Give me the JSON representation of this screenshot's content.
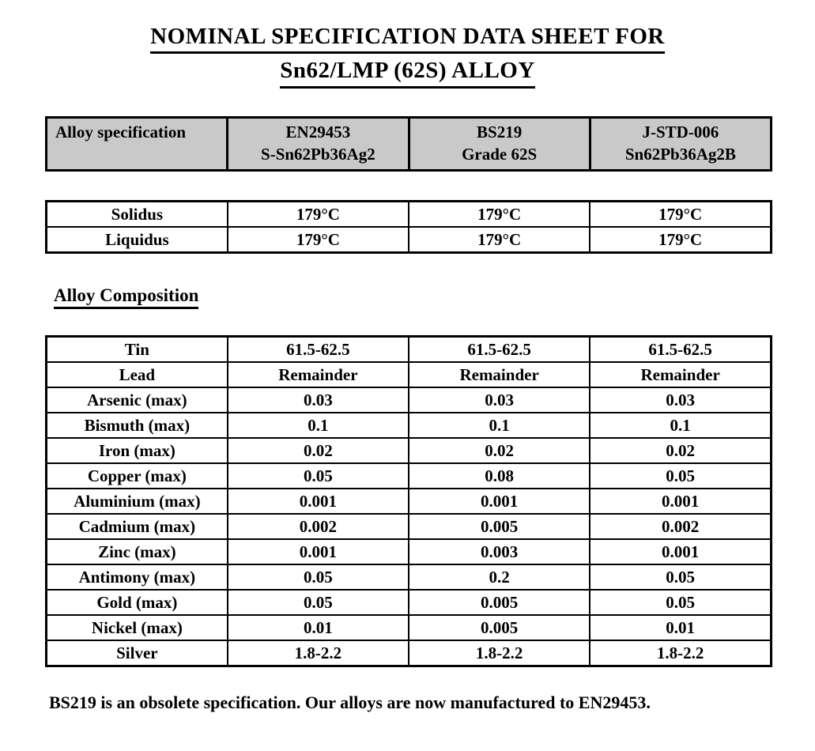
{
  "title": {
    "line1": "NOMINAL SPECIFICATION DATA SHEET FOR",
    "line2": "Sn62/LMP (62S) ALLOY"
  },
  "spec_header": {
    "row_label": "Alloy specification",
    "columns": [
      {
        "line1": "EN29453",
        "line2": "S-Sn62Pb36Ag2"
      },
      {
        "line1": "BS219",
        "line2": "Grade 62S"
      },
      {
        "line1": "J-STD-006",
        "line2": "Sn62Pb36Ag2B"
      }
    ]
  },
  "melting_table": {
    "rows": [
      {
        "label": "Solidus",
        "values": [
          "179°C",
          "179°C",
          "179°C"
        ]
      },
      {
        "label": "Liquidus",
        "values": [
          "179°C",
          "179°C",
          "179°C"
        ]
      }
    ]
  },
  "composition": {
    "heading": "Alloy Composition",
    "rows": [
      {
        "label": "Tin",
        "values": [
          "61.5-62.5",
          "61.5-62.5",
          "61.5-62.5"
        ]
      },
      {
        "label": "Lead",
        "values": [
          "Remainder",
          "Remainder",
          "Remainder"
        ]
      },
      {
        "label": "Arsenic (max)",
        "values": [
          "0.03",
          "0.03",
          "0.03"
        ]
      },
      {
        "label": "Bismuth (max)",
        "values": [
          "0.1",
          "0.1",
          "0.1"
        ]
      },
      {
        "label": "Iron (max)",
        "values": [
          "0.02",
          "0.02",
          "0.02"
        ]
      },
      {
        "label": "Copper (max)",
        "values": [
          "0.05",
          "0.08",
          "0.05"
        ]
      },
      {
        "label": "Aluminium (max)",
        "values": [
          "0.001",
          "0.001",
          "0.001"
        ]
      },
      {
        "label": "Cadmium (max)",
        "values": [
          "0.002",
          "0.005",
          "0.002"
        ]
      },
      {
        "label": "Zinc (max)",
        "values": [
          "0.001",
          "0.003",
          "0.001"
        ]
      },
      {
        "label": "Antimony (max)",
        "values": [
          "0.05",
          "0.2",
          "0.05"
        ]
      },
      {
        "label": "Gold (max)",
        "values": [
          "0.05",
          "0.005",
          "0.05"
        ]
      },
      {
        "label": "Nickel (max)",
        "values": [
          "0.01",
          "0.005",
          "0.01"
        ]
      },
      {
        "label": "Silver",
        "values": [
          "1.8-2.2",
          "1.8-2.2",
          "1.8-2.2"
        ]
      }
    ]
  },
  "footer": {
    "note": "BS219 is an obsolete specification. Our alloys are now manufactured to EN29453."
  },
  "colors": {
    "page_bg": "#ffffff",
    "table_header_bg": "#c9c9c9",
    "border": "#000000",
    "text": "#000000"
  }
}
